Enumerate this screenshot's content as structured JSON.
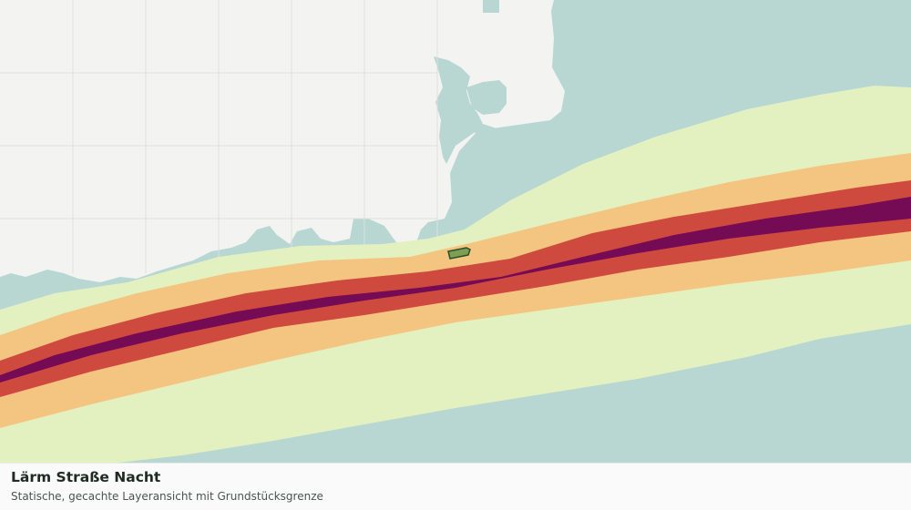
{
  "map": {
    "colors": {
      "background": "#b8d7d3",
      "built_area": "#f3f4f2",
      "block_lines": "#dcdfdc",
      "noise_band_1": "#e3f1c1",
      "noise_band_2": "#f4c581",
      "noise_band_3": "#cf4a3e",
      "noise_band_4": "#750a55",
      "parcel_fill": "#7c9f52",
      "parcel_stroke": "#2b4d2b"
    },
    "features": {
      "road_noise_bands": "road-noise-contours",
      "parcel": "plot-boundary"
    }
  },
  "caption": {
    "title": "Lärm Straße Nacht",
    "subtitle": "Statische, gecachte Layeransicht mit Grundstücksgrenze"
  }
}
